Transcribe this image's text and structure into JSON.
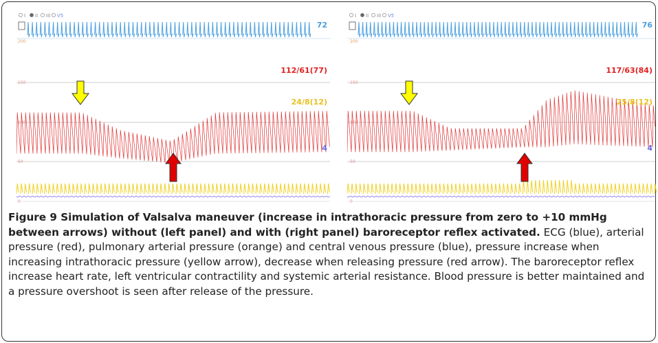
{
  "panels": [
    {
      "radio": [
        "I",
        "II",
        "III",
        "V5"
      ],
      "heart_rate": "72",
      "axis_labels": [
        "200",
        "150",
        "100",
        "50",
        "0"
      ],
      "arterial": "112/61(77)",
      "pulmonary": "24/8(12)",
      "venous": "4"
    },
    {
      "radio": [
        "I",
        "II",
        "III",
        "V5"
      ],
      "heart_rate": "76",
      "axis_labels": [
        "200",
        "150",
        "100",
        "50",
        "0"
      ],
      "arterial": "117/63(84)",
      "pulmonary": "25/8(12)",
      "venous": "4"
    }
  ],
  "caption": {
    "title": "Figure 9 Simulation of Valsalva maneuver (increase in intrathoracic pressure from zero to +10 mmHg between arrows) without (left panel) and with (right panel) baroreceptor reflex activated.",
    "text": "ECG (blue), arterial pressure (red), pulmonary arterial pressure (orange) and central venous pressure (blue), pressure increase when increasing intrathoracic pressure (yellow arrow), decrease when releasing pressure (red arrow). The baroreceptor reflex increase heart rate, left ventricular contractility and systemic arterial resistance. Blood pressure is better maintained and a pressure overshoot is seen after release of the pressure."
  }
}
